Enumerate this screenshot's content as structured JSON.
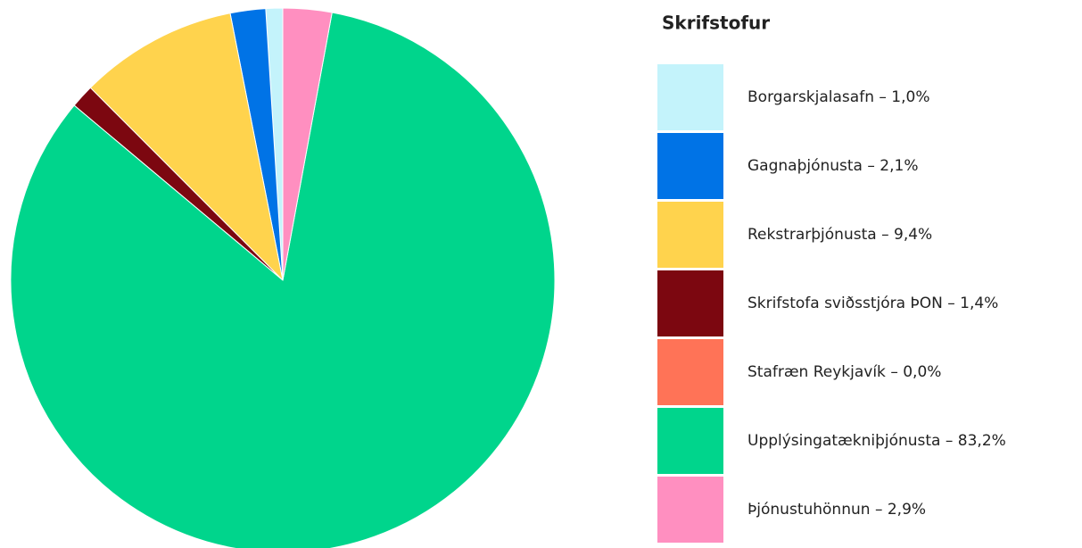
{
  "chart_data": {
    "type": "pie",
    "legend_title": "Skrifstofur",
    "legend_separator": "–",
    "categories": [
      "Borgarskjalasafn",
      "Gagnaþjónusta",
      "Rekstrarþjónusta",
      "Skrifstofa sviðsstjóra ÞON",
      "Stafræn Reykjavík",
      "Upplýsingatækniþjónusta",
      "Þjónustuhönnun"
    ],
    "values": [
      1.0,
      2.1,
      9.4,
      1.4,
      0.0,
      83.2,
      2.9
    ],
    "value_labels": [
      "1,0%",
      "2,1%",
      "9,4%",
      "1,4%",
      "0,0%",
      "83,2%",
      "2,9%"
    ],
    "colors": [
      "#c4f3fb",
      "#0073e6",
      "#ffd34d",
      "#7c0710",
      "#ff7357",
      "#00d58c",
      "#ff8fc0"
    ],
    "legend_position": "right"
  }
}
